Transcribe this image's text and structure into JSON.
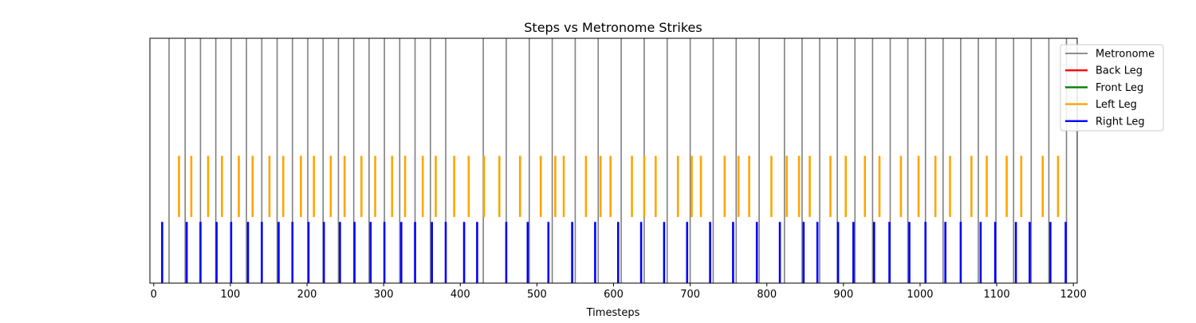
{
  "chart_data": {
    "type": "event-raster",
    "title": "Steps vs Metronome Strikes",
    "xlabel": "Timesteps",
    "ylabel": "",
    "xlim": [
      -5,
      1205
    ],
    "grid": false,
    "legend_position": "upper-right",
    "x_ticks": [
      0,
      100,
      200,
      300,
      400,
      500,
      600,
      700,
      800,
      900,
      1000,
      1100,
      1200
    ],
    "y_range": [
      0,
      1
    ],
    "series": [
      {
        "name": "Metronome",
        "color": "#808080",
        "band": [
          0.0,
          1.0
        ],
        "x": [
          20,
          41,
          61,
          81,
          101,
          121,
          141,
          161,
          181,
          201,
          221,
          241,
          261,
          281,
          301,
          321,
          341,
          361,
          381,
          430,
          460,
          490,
          520,
          550,
          580,
          610,
          640,
          670,
          700,
          730,
          760,
          790,
          823,
          846,
          869,
          892,
          915,
          938,
          961,
          984,
          1007,
          1030,
          1053,
          1076,
          1099,
          1122,
          1145,
          1168,
          1191
        ]
      },
      {
        "name": "Back Leg",
        "color": "#ff0000",
        "band": [
          0.0,
          0.0
        ],
        "x": []
      },
      {
        "name": "Front Leg",
        "color": "#008000",
        "band": [
          0.0,
          0.0
        ],
        "x": []
      },
      {
        "name": "Left Leg",
        "color": "#ffa500",
        "band": [
          0.27,
          0.52
        ],
        "x": [
          33,
          49,
          71,
          89,
          111,
          129,
          151,
          169,
          192,
          209,
          231,
          249,
          271,
          289,
          311,
          328,
          351,
          368,
          392,
          411,
          431,
          451,
          478,
          505,
          524,
          535,
          564,
          583,
          596,
          624,
          640,
          655,
          684,
          702,
          714,
          745,
          763,
          777,
          806,
          826,
          842,
          856,
          883,
          903,
          928,
          947,
          975,
          998,
          1020,
          1039,
          1067,
          1087,
          1113,
          1132,
          1160,
          1180
        ]
      },
      {
        "name": "Right Leg",
        "color": "#0000ff",
        "band": [
          0.0,
          0.25
        ],
        "x": [
          11,
          43,
          61,
          82,
          101,
          123,
          141,
          163,
          181,
          202,
          222,
          243,
          262,
          283,
          301,
          323,
          341,
          363,
          381,
          405,
          422,
          460,
          488,
          515,
          546,
          576,
          606,
          636,
          666,
          696,
          726,
          756,
          787,
          817,
          848,
          866,
          893,
          913,
          940,
          960,
          986,
          1007,
          1033,
          1053,
          1079,
          1098,
          1125,
          1143,
          1170,
          1190
        ]
      }
    ]
  }
}
